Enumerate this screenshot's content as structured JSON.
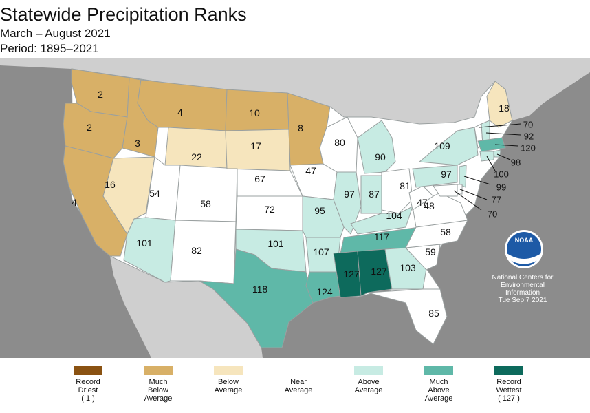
{
  "title": "Statewide Precipitation Ranks",
  "subtitle": "March – August 2021",
  "period": "Period: 1895–2021",
  "colors": {
    "record_driest": "#8a5212",
    "much_below": "#d8b067",
    "below": "#f6e5bd",
    "near": "#ffffff",
    "above": "#c7ebe3",
    "much_above": "#5fb8a8",
    "record_wettest": "#0d6a5c",
    "ocean": "#8c8c8c",
    "land": "#cfcfcf"
  },
  "credit": {
    "logo": "NOAA",
    "line1": "National Centers for",
    "line2": "Environmental",
    "line3": "Information",
    "date": "Tue Sep  7 2021"
  },
  "states": [
    {
      "code": "WA",
      "rank": 2,
      "category": "much_below"
    },
    {
      "code": "OR",
      "rank": 2,
      "category": "much_below"
    },
    {
      "code": "CA",
      "rank": 4,
      "category": "much_below"
    },
    {
      "code": "ID",
      "rank": 3,
      "category": "much_below"
    },
    {
      "code": "NV",
      "rank": 16,
      "category": "below"
    },
    {
      "code": "MT",
      "rank": 4,
      "category": "much_below"
    },
    {
      "code": "WY",
      "rank": 22,
      "category": "below"
    },
    {
      "code": "UT",
      "rank": 54,
      "category": "near"
    },
    {
      "code": "AZ",
      "rank": 101,
      "category": "above"
    },
    {
      "code": "CO",
      "rank": 58,
      "category": "near"
    },
    {
      "code": "NM",
      "rank": 82,
      "category": "near"
    },
    {
      "code": "ND",
      "rank": 10,
      "category": "much_below"
    },
    {
      "code": "SD",
      "rank": 17,
      "category": "below"
    },
    {
      "code": "NE",
      "rank": 67,
      "category": "near"
    },
    {
      "code": "KS",
      "rank": 72,
      "category": "near"
    },
    {
      "code": "OK",
      "rank": 101,
      "category": "above"
    },
    {
      "code": "TX",
      "rank": 118,
      "category": "much_above"
    },
    {
      "code": "MN",
      "rank": 8,
      "category": "much_below"
    },
    {
      "code": "IA",
      "rank": 47,
      "category": "near"
    },
    {
      "code": "MO",
      "rank": 95,
      "category": "above"
    },
    {
      "code": "AR",
      "rank": 107,
      "category": "above"
    },
    {
      "code": "LA",
      "rank": 124,
      "category": "much_above"
    },
    {
      "code": "WI",
      "rank": 80,
      "category": "near"
    },
    {
      "code": "IL",
      "rank": 97,
      "category": "above"
    },
    {
      "code": "MI",
      "rank": 90,
      "category": "above"
    },
    {
      "code": "IN",
      "rank": 87,
      "category": "above"
    },
    {
      "code": "OH",
      "rank": 81,
      "category": "near"
    },
    {
      "code": "KY",
      "rank": 104,
      "category": "above"
    },
    {
      "code": "TN",
      "rank": 117,
      "category": "much_above"
    },
    {
      "code": "MS",
      "rank": 127,
      "category": "record_wettest"
    },
    {
      "code": "AL",
      "rank": 127,
      "category": "record_wettest"
    },
    {
      "code": "GA",
      "rank": 103,
      "category": "above"
    },
    {
      "code": "FL",
      "rank": 85,
      "category": "near"
    },
    {
      "code": "SC",
      "rank": 59,
      "category": "near"
    },
    {
      "code": "NC",
      "rank": 58,
      "category": "near"
    },
    {
      "code": "VA",
      "rank": 48,
      "category": "near"
    },
    {
      "code": "WV",
      "rank": 47,
      "category": "near"
    },
    {
      "code": "PA",
      "rank": 97,
      "category": "above"
    },
    {
      "code": "NY",
      "rank": 109,
      "category": "above"
    },
    {
      "code": "ME",
      "rank": 18,
      "category": "below"
    },
    {
      "code": "VT",
      "rank": 70,
      "category": "near"
    },
    {
      "code": "NH",
      "rank": 92,
      "category": "above"
    },
    {
      "code": "MA",
      "rank": 120,
      "category": "much_above"
    },
    {
      "code": "RI",
      "rank": 98,
      "category": "above"
    },
    {
      "code": "CT",
      "rank": 100,
      "category": "above"
    },
    {
      "code": "NJ",
      "rank": 99,
      "category": "above"
    },
    {
      "code": "DE",
      "rank": 77,
      "category": "near"
    },
    {
      "code": "MD",
      "rank": 70,
      "category": "near"
    }
  ],
  "legend": [
    {
      "key": "record_driest",
      "lines": [
        "Record",
        "Driest",
        "( 1 )"
      ]
    },
    {
      "key": "much_below",
      "lines": [
        "Much",
        "Below",
        "Average"
      ]
    },
    {
      "key": "below",
      "lines": [
        "Below",
        "Average"
      ]
    },
    {
      "key": "near",
      "lines": [
        "Near",
        "Average"
      ]
    },
    {
      "key": "above",
      "lines": [
        "Above",
        "Average"
      ]
    },
    {
      "key": "much_above",
      "lines": [
        "Much",
        "Above",
        "Average"
      ]
    },
    {
      "key": "record_wettest",
      "lines": [
        "Record",
        "Wettest",
        "( 127 )"
      ]
    }
  ]
}
